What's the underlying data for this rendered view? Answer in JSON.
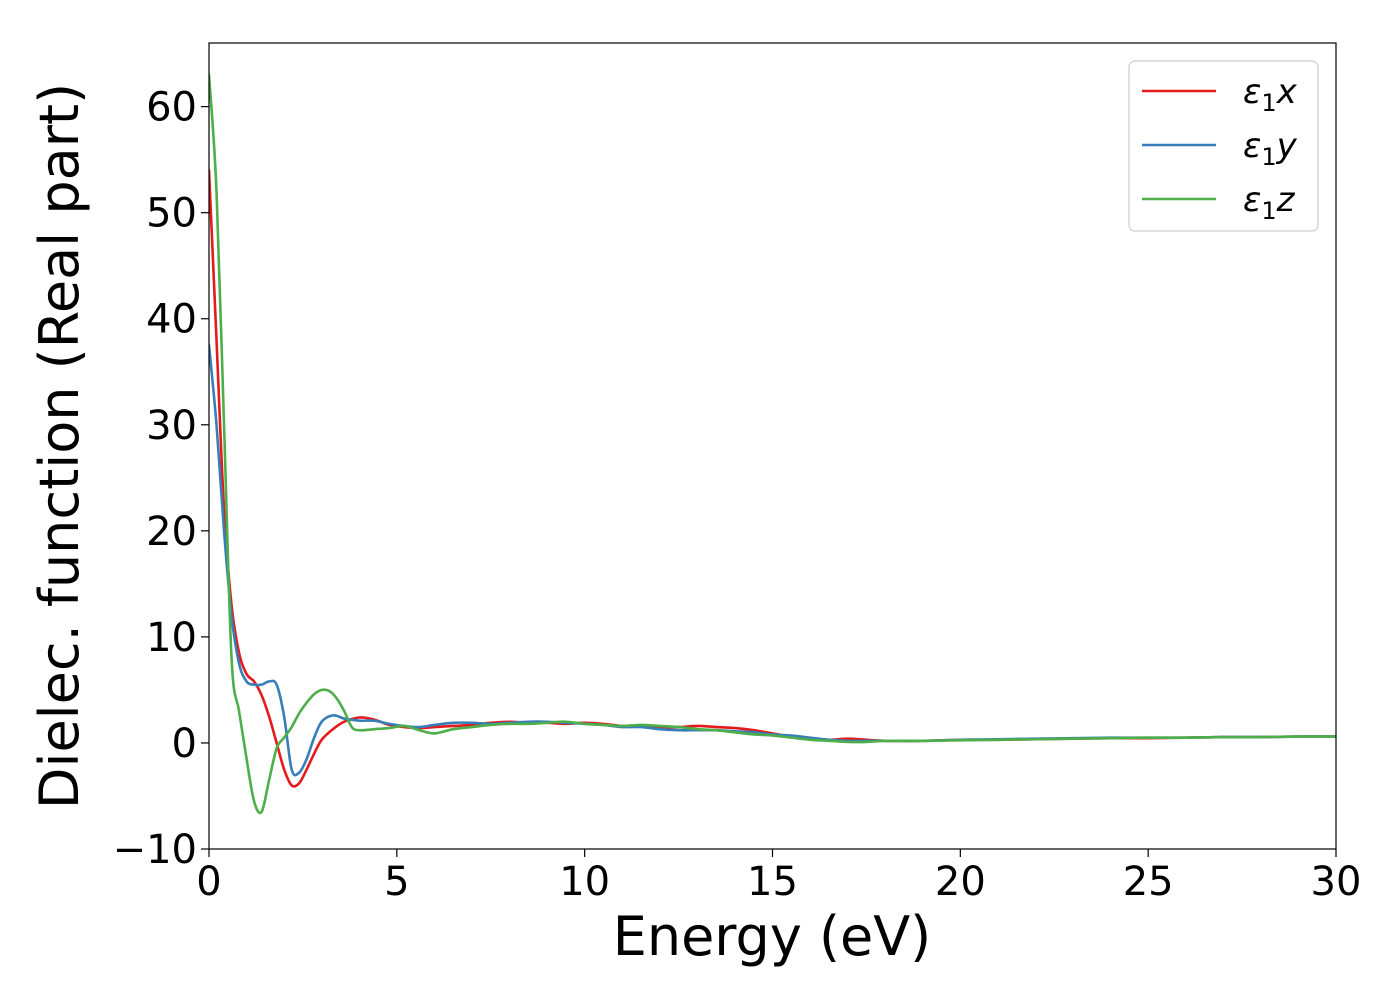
{
  "chart_data": {
    "type": "line",
    "xlabel": "Energy (eV)",
    "ylabel": "Dielec. function (Real part)",
    "xlim": [
      0,
      30
    ],
    "ylim": [
      -10,
      66
    ],
    "xticks": [
      0,
      5,
      10,
      15,
      20,
      25,
      30
    ],
    "yticks": [
      -10,
      0,
      10,
      20,
      30,
      40,
      50,
      60
    ],
    "xtick_labels": [
      "0",
      "5",
      "10",
      "15",
      "20",
      "25",
      "30"
    ],
    "ytick_labels": [
      "−10",
      "0",
      "10",
      "20",
      "30",
      "40",
      "50",
      "60"
    ],
    "grid": false,
    "legend": "top-right",
    "series": [
      {
        "name": "ε₁x",
        "legend_base": "ε",
        "legend_sub": "1",
        "legend_tail": "x",
        "color": "#e41a1c",
        "x": [
          0,
          0.2,
          0.4,
          0.6,
          0.8,
          1.0,
          1.2,
          1.4,
          1.6,
          1.8,
          2.0,
          2.2,
          2.4,
          2.6,
          2.8,
          3.0,
          3.3,
          3.6,
          4.0,
          4.4,
          4.8,
          5.2,
          5.6,
          6.0,
          6.5,
          7.0,
          7.5,
          8.0,
          8.5,
          9.0,
          9.5,
          10.0,
          10.5,
          11.0,
          11.5,
          12.0,
          12.5,
          13.0,
          13.5,
          14.0,
          14.5,
          15.0,
          15.5,
          16.0,
          16.5,
          17.0,
          17.5,
          18.0,
          19.0,
          20.0,
          21.0,
          22.0,
          23.0,
          24.0,
          25.0,
          26.0,
          27.0,
          28.0,
          29.0,
          30.0
        ],
        "y": [
          54,
          38,
          22,
          13,
          8.5,
          6.5,
          5.8,
          4.5,
          2.5,
          0,
          -2.5,
          -4.0,
          -3.8,
          -2.5,
          -1.0,
          0.3,
          1.3,
          2.0,
          2.4,
          2.2,
          1.7,
          1.5,
          1.4,
          1.5,
          1.6,
          1.7,
          1.9,
          2.0,
          1.9,
          1.9,
          1.8,
          1.9,
          1.8,
          1.6,
          1.6,
          1.5,
          1.5,
          1.6,
          1.5,
          1.4,
          1.2,
          0.9,
          0.6,
          0.4,
          0.3,
          0.4,
          0.3,
          0.2,
          0.2,
          0.3,
          0.3,
          0.35,
          0.4,
          0.45,
          0.45,
          0.5,
          0.55,
          0.55,
          0.6,
          0.6
        ]
      },
      {
        "name": "ε₁y",
        "legend_base": "ε",
        "legend_sub": "1",
        "legend_tail": "y",
        "color": "#377eb8",
        "x": [
          0,
          0.2,
          0.4,
          0.6,
          0.8,
          1.0,
          1.2,
          1.4,
          1.6,
          1.8,
          2.0,
          2.2,
          2.4,
          2.6,
          2.8,
          3.0,
          3.3,
          3.6,
          4.0,
          4.4,
          4.8,
          5.2,
          5.6,
          6.0,
          6.5,
          7.0,
          7.5,
          8.0,
          8.5,
          9.0,
          9.5,
          10.0,
          10.5,
          11.0,
          11.5,
          12.0,
          12.5,
          13.0,
          13.5,
          14.0,
          14.5,
          15.0,
          15.5,
          16.0,
          16.5,
          17.0,
          17.5,
          18.0,
          19.0,
          20.0,
          21.0,
          22.0,
          23.0,
          24.0,
          25.0,
          26.0,
          27.0,
          28.0,
          29.0,
          30.0
        ],
        "y": [
          37.5,
          30,
          20,
          12,
          7.5,
          5.8,
          5.5,
          5.5,
          5.8,
          5.5,
          2.5,
          -2.5,
          -2.8,
          -1.5,
          0.5,
          2.0,
          2.6,
          2.3,
          2.1,
          2.1,
          1.8,
          1.6,
          1.5,
          1.7,
          1.9,
          1.9,
          1.8,
          1.9,
          2.0,
          2.0,
          1.9,
          1.8,
          1.7,
          1.5,
          1.5,
          1.3,
          1.2,
          1.2,
          1.2,
          1.1,
          1.0,
          0.8,
          0.7,
          0.5,
          0.3,
          0.2,
          0.2,
          0.2,
          0.2,
          0.3,
          0.35,
          0.4,
          0.45,
          0.5,
          0.5,
          0.5,
          0.55,
          0.55,
          0.6,
          0.6
        ]
      },
      {
        "name": "ε₁z",
        "legend_base": "ε",
        "legend_sub": "1",
        "legend_tail": "z",
        "color": "#4daf4a",
        "x": [
          0,
          0.2,
          0.4,
          0.6,
          0.8,
          1.0,
          1.2,
          1.4,
          1.6,
          1.8,
          2.0,
          2.2,
          2.4,
          2.6,
          2.8,
          3.0,
          3.2,
          3.4,
          3.6,
          3.8,
          4.0,
          4.4,
          4.8,
          5.2,
          5.6,
          6.0,
          6.5,
          7.0,
          7.5,
          8.0,
          8.5,
          9.0,
          9.5,
          10.0,
          10.5,
          11.0,
          11.5,
          12.0,
          12.5,
          13.0,
          13.5,
          14.0,
          14.5,
          15.0,
          15.5,
          16.0,
          16.5,
          17.0,
          17.5,
          18.0,
          19.0,
          20.0,
          21.0,
          22.0,
          23.0,
          24.0,
          25.0,
          26.0,
          27.0,
          28.0,
          29.0,
          30.0
        ],
        "y": [
          63,
          52,
          30,
          8,
          3,
          -1.5,
          -5.5,
          -6.5,
          -3.5,
          -0.5,
          0.5,
          1.5,
          2.8,
          3.8,
          4.6,
          5.0,
          4.9,
          4.2,
          3.0,
          1.5,
          1.2,
          1.3,
          1.4,
          1.6,
          1.2,
          0.9,
          1.3,
          1.5,
          1.7,
          1.8,
          1.8,
          1.9,
          2.0,
          1.8,
          1.7,
          1.6,
          1.7,
          1.6,
          1.5,
          1.3,
          1.2,
          1.0,
          0.8,
          0.7,
          0.5,
          0.3,
          0.2,
          0.1,
          0.1,
          0.2,
          0.2,
          0.25,
          0.3,
          0.35,
          0.4,
          0.45,
          0.5,
          0.5,
          0.55,
          0.55,
          0.6,
          0.6
        ]
      }
    ]
  }
}
